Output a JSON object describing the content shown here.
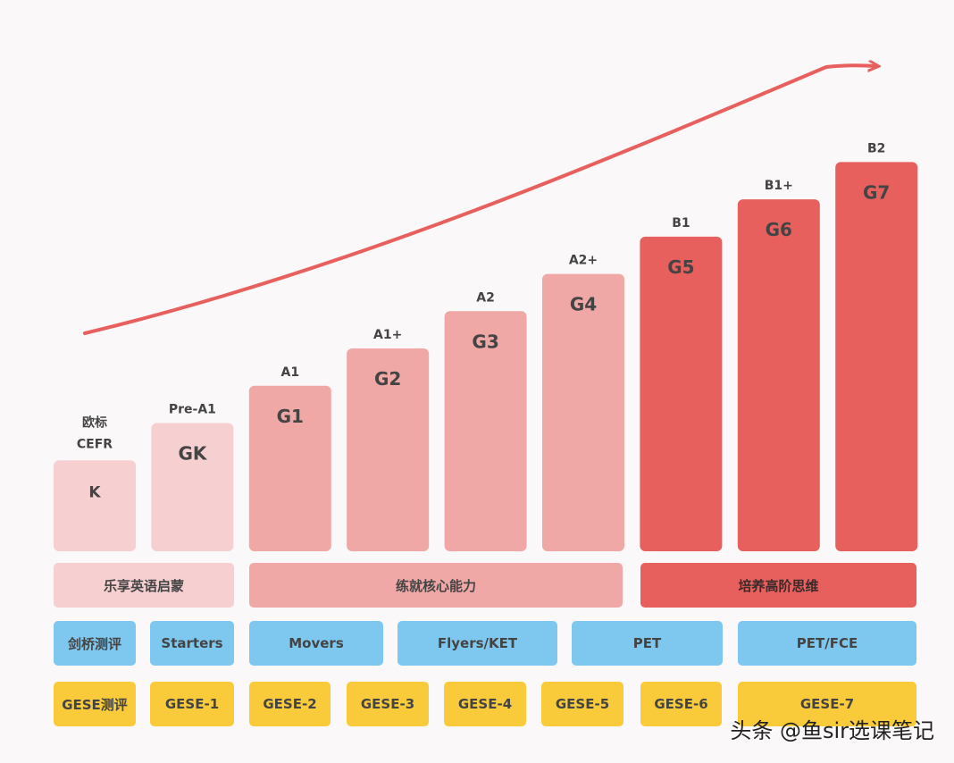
{
  "chart_data": {
    "type": "bar",
    "categories": [
      "K",
      "GK",
      "G1",
      "G2",
      "G3",
      "G4",
      "G5",
      "G6",
      "G7"
    ],
    "values": [
      1,
      2,
      3,
      4,
      5,
      6,
      7,
      8,
      9
    ],
    "cefr_labels": [
      "",
      "Pre-A1",
      "A1",
      "A1+",
      "A2",
      "A2+",
      "B1",
      "B1+",
      "B2"
    ],
    "first_cefr_label_lines": [
      "欧标",
      "CEFR"
    ],
    "ylim": [
      0,
      10
    ],
    "bar_colors": [
      "#f6cfd1",
      "#f6cfd1",
      "#f0a8a6",
      "#f0a8a6",
      "#f0a8a6",
      "#f0a8a6",
      "#e8605d",
      "#e8605d",
      "#e8605d"
    ],
    "trend_arrow_color": "#e8605d"
  },
  "categories_row": [
    "乐享英语启蒙",
    "练就核心能力",
    "培养高阶思维"
  ],
  "cambridge_row": [
    "剑桥测评",
    "Starters",
    "Movers",
    "Flyers/KET",
    "PET",
    "PET/FCE"
  ],
  "gese_row": [
    "GESE测评",
    "GESE-1",
    "GESE-2",
    "GESE-3",
    "GESE-4",
    "GESE-5",
    "GESE-6",
    "GESE-7"
  ],
  "watermark": "头条 @鱼sir选课笔记"
}
